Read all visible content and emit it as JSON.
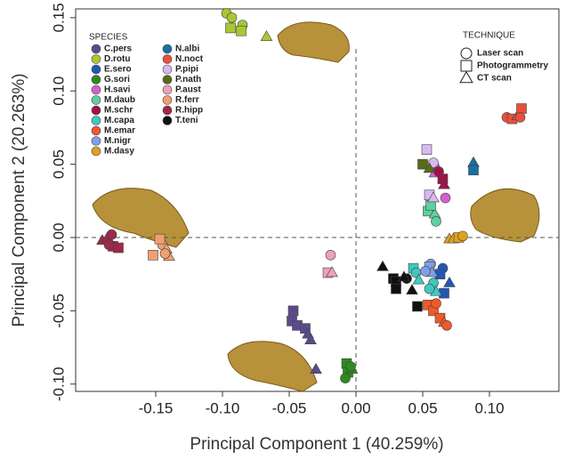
{
  "chart_data": {
    "type": "scatter",
    "x_label": "Principal Component 1 (40.259%)",
    "y_label": "Principal Component 2 (20.263%)",
    "xlim": [
      -0.21,
      0.152
    ],
    "ylim": [
      -0.105,
      0.156
    ],
    "xticks": [
      -0.15,
      {
        "value": -0.1,
        "label": "-0.10"
      },
      -0.05,
      {
        "value": 0,
        "label": "0.00"
      },
      0.05,
      {
        "value": 0.1,
        "label": "0.10"
      }
    ],
    "yticks": [
      {
        "value": -0.1,
        "label": "-0.10"
      },
      -0.05,
      {
        "value": 0,
        "label": "0.00"
      },
      0.05,
      {
        "value": 0.1,
        "label": "0.10"
      },
      0.15
    ],
    "reference_lines": {
      "x": 0,
      "y": 0
    },
    "species_legend_title": "SPECIES",
    "technique_legend": {
      "title": "TECHNIQUE",
      "items": [
        {
          "name": "Laser scan",
          "marker": "circle"
        },
        {
          "name": "Photogrammetry",
          "marker": "square"
        },
        {
          "name": "CT scan",
          "marker": "triangle"
        }
      ]
    },
    "series": [
      {
        "name": "C.pers",
        "color": "#5b4a8b",
        "x": [
          -0.047,
          -0.048,
          -0.044,
          -0.038,
          -0.036,
          -0.034,
          -0.03
        ],
        "y": [
          -0.05,
          -0.057,
          -0.06,
          -0.062,
          -0.066,
          -0.07,
          -0.09
        ],
        "markers": [
          "square",
          "square",
          "square",
          "square",
          "triangle",
          "triangle",
          "triangle"
        ]
      },
      {
        "name": "D.rotu",
        "color": "#a8c832",
        "x": [
          -0.097,
          -0.093,
          -0.094,
          -0.085,
          -0.086,
          -0.067
        ],
        "y": [
          0.153,
          0.15,
          0.143,
          0.145,
          0.141,
          0.137
        ],
        "markers": [
          "circle",
          "circle",
          "square",
          "circle",
          "square",
          "triangle"
        ]
      },
      {
        "name": "E.sero",
        "color": "#2456b8",
        "x": [
          0.065,
          0.063,
          0.07,
          0.066
        ],
        "y": [
          -0.021,
          -0.025,
          -0.031,
          -0.038
        ],
        "markers": [
          "circle",
          "square",
          "triangle",
          "square"
        ]
      },
      {
        "name": "G.sori",
        "color": "#2e8b1e",
        "x": [
          -0.007,
          -0.006,
          -0.003,
          -0.008,
          -0.004
        ],
        "y": [
          -0.086,
          -0.092,
          -0.09,
          -0.096,
          -0.088
        ],
        "markers": [
          "square",
          "square",
          "triangle",
          "circle",
          "circle"
        ]
      },
      {
        "name": "H.savi",
        "color": "#d65fd0",
        "x": [
          0.059,
          0.067,
          0.059
        ],
        "y": [
          0.048,
          0.027,
          0.044
        ],
        "markers": [
          "circle",
          "circle",
          "triangle"
        ]
      },
      {
        "name": "M.daub",
        "color": "#5fcf9f",
        "x": [
          0.054,
          0.059,
          0.06,
          0.056
        ],
        "y": [
          0.018,
          0.016,
          0.011,
          0.022
        ],
        "markers": [
          "square",
          "triangle",
          "circle",
          "square"
        ]
      },
      {
        "name": "M.schr",
        "color": "#a0124a",
        "x": [
          0.065,
          0.066,
          0.062
        ],
        "y": [
          0.04,
          0.036,
          0.045
        ],
        "markers": [
          "square",
          "triangle",
          "circle"
        ]
      },
      {
        "name": "M.capa",
        "color": "#40c8c0",
        "x": [
          0.043,
          0.045,
          0.047,
          0.058,
          0.06,
          0.055
        ],
        "y": [
          -0.021,
          -0.024,
          -0.029,
          -0.031,
          -0.037,
          -0.035
        ],
        "markers": [
          "square",
          "circle",
          "triangle",
          "circle",
          "triangle",
          "circle"
        ]
      },
      {
        "name": "M.emar",
        "color": "#f05a28",
        "x": [
          0.054,
          0.058,
          0.063,
          0.066,
          0.068,
          0.06
        ],
        "y": [
          -0.046,
          -0.05,
          -0.055,
          -0.058,
          -0.06,
          -0.045
        ],
        "markers": [
          "square",
          "square",
          "square",
          "triangle",
          "circle",
          "circle"
        ]
      },
      {
        "name": "M.nigr",
        "color": "#7f9fe8",
        "x": [
          0.056,
          0.055,
          0.057,
          0.052
        ],
        "y": [
          -0.018,
          -0.02,
          -0.024,
          -0.023
        ],
        "markers": [
          "circle",
          "square",
          "triangle",
          "circle"
        ]
      },
      {
        "name": "M.dasy",
        "color": "#e0a020",
        "x": [
          0.07,
          0.073,
          0.077,
          0.08
        ],
        "y": [
          -0.001,
          -0.001,
          0.0,
          0.001
        ],
        "markers": [
          "triangle",
          "triangle",
          "square",
          "circle"
        ]
      },
      {
        "name": "N.albi",
        "color": "#1870a0",
        "x": [
          0.088,
          0.088
        ],
        "y": [
          0.051,
          0.046
        ],
        "markers": [
          "triangle",
          "square"
        ]
      },
      {
        "name": "N.noct",
        "color": "#e8503c",
        "x": [
          0.113,
          0.117,
          0.121,
          0.124,
          0.123
        ],
        "y": [
          0.082,
          0.081,
          0.083,
          0.088,
          0.082
        ],
        "markers": [
          "circle",
          "square",
          "triangle",
          "square",
          "circle"
        ]
      },
      {
        "name": "P.pipi",
        "color": "#d8b8f0",
        "x": [
          0.053,
          0.058,
          0.055,
          0.058
        ],
        "y": [
          0.06,
          0.051,
          0.029,
          0.027
        ],
        "markers": [
          "square",
          "circle",
          "square",
          "triangle"
        ]
      },
      {
        "name": "P.nath",
        "color": "#5a6a18",
        "x": [
          0.05,
          0.055
        ],
        "y": [
          0.05,
          0.047
        ],
        "markers": [
          "square",
          "triangle"
        ]
      },
      {
        "name": "P.aust",
        "color": "#f0a0b8",
        "x": [
          -0.019,
          -0.021,
          -0.018
        ],
        "y": [
          -0.012,
          -0.024,
          -0.024
        ],
        "markers": [
          "circle",
          "square",
          "triangle"
        ]
      },
      {
        "name": "R.ferr",
        "color": "#f0a070",
        "x": [
          -0.152,
          -0.145,
          -0.142,
          -0.14,
          -0.143,
          -0.147
        ],
        "y": [
          -0.012,
          -0.005,
          -0.008,
          -0.013,
          -0.011,
          -0.001
        ],
        "markers": [
          "square",
          "circle",
          "triangle",
          "triangle",
          "circle",
          "square"
        ]
      },
      {
        "name": "R.hipp",
        "color": "#a02848",
        "x": [
          -0.19,
          -0.186,
          -0.183,
          -0.182,
          -0.178,
          -0.185
        ],
        "y": [
          -0.002,
          0.0,
          0.002,
          -0.006,
          -0.007,
          -0.005
        ],
        "markers": [
          "triangle",
          "triangle",
          "circle",
          "square",
          "square",
          "circle"
        ]
      },
      {
        "name": "T.teni",
        "color": "#111111",
        "x": [
          0.02,
          0.028,
          0.03,
          0.03,
          0.038,
          0.042,
          0.046,
          0.036
        ],
        "y": [
          -0.02,
          -0.028,
          -0.03,
          -0.035,
          -0.028,
          -0.036,
          -0.047,
          -0.027
        ],
        "markers": [
          "triangle",
          "square",
          "square",
          "square",
          "circle",
          "triangle",
          "square",
          "triangle"
        ]
      }
    ]
  }
}
